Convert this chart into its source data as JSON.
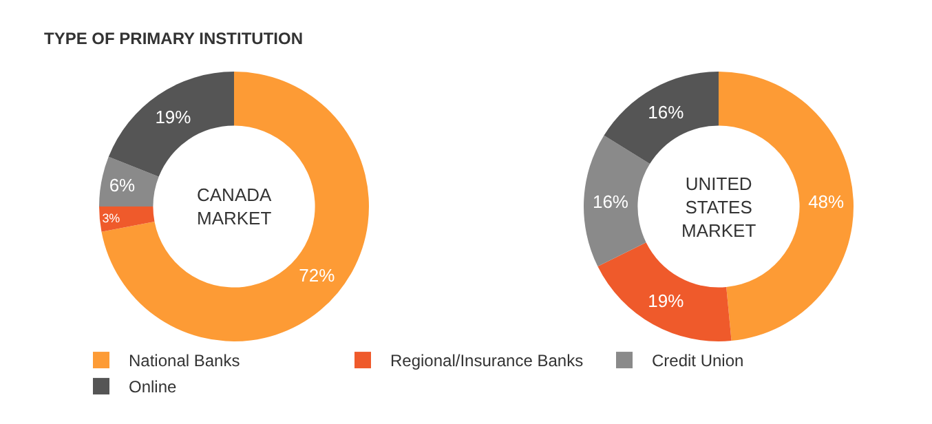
{
  "chart_data": [
    {
      "type": "donut",
      "title": "TYPE OF PRIMARY INSTITUTION",
      "categories": [
        "National Banks",
        "Regional/Insurance Banks",
        "Credit Union",
        "Online"
      ],
      "values": [
        72,
        3,
        6,
        19
      ],
      "colors": [
        "#fd9b35",
        "#ef5a2b",
        "#8a8a8a",
        "#555555"
      ],
      "value_labels": [
        "72%",
        "3%",
        "6%",
        "19%"
      ],
      "annotations": [
        "CANADA\nMARKET"
      ],
      "legend": "bottom"
    },
    {
      "type": "donut",
      "categories": [
        null,
        null,
        null,
        null
      ],
      "values": [
        48,
        19,
        16,
        16
      ],
      "colors": [
        "#fd9b35",
        "#ef5a2b",
        "#8a8a8a",
        "#555555"
      ],
      "value_labels": [
        "48%",
        "19%",
        "16%",
        "16%"
      ],
      "annotations": [
        "UNITED\nSTATES\nMARKET"
      ]
    }
  ]
}
